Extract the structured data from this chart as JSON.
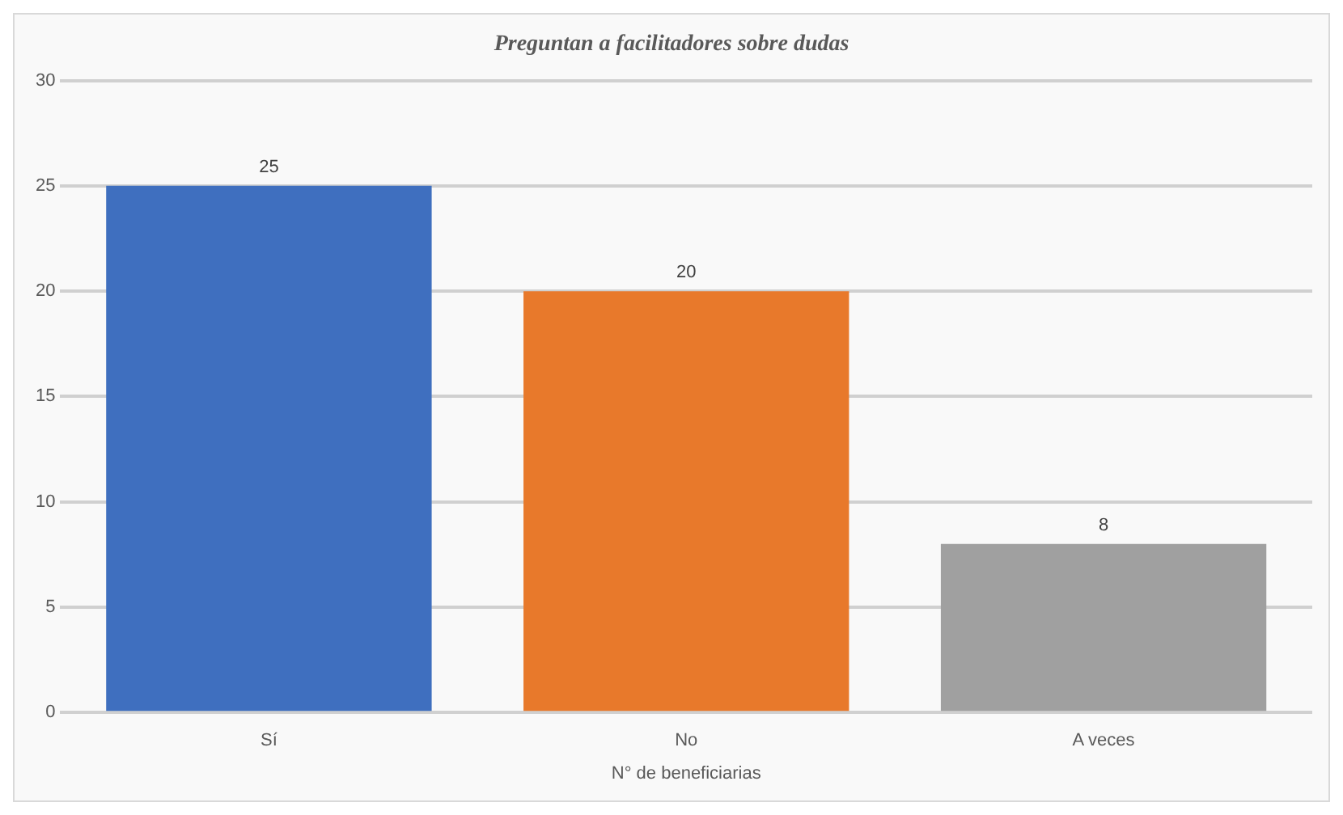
{
  "chart_data": {
    "type": "bar",
    "title": "Preguntan a facilitadores sobre dudas",
    "xlabel": "N° de beneficiarias",
    "categories": [
      "Sí",
      "No",
      "A veces"
    ],
    "values": [
      25,
      20,
      8
    ],
    "colors": [
      "#3f6fbf",
      "#e8792b",
      "#a0a0a0"
    ],
    "ylim": [
      0,
      30
    ],
    "yticks": [
      0,
      5,
      10,
      15,
      20,
      25,
      30
    ],
    "grid": "y",
    "data_labels": true
  }
}
